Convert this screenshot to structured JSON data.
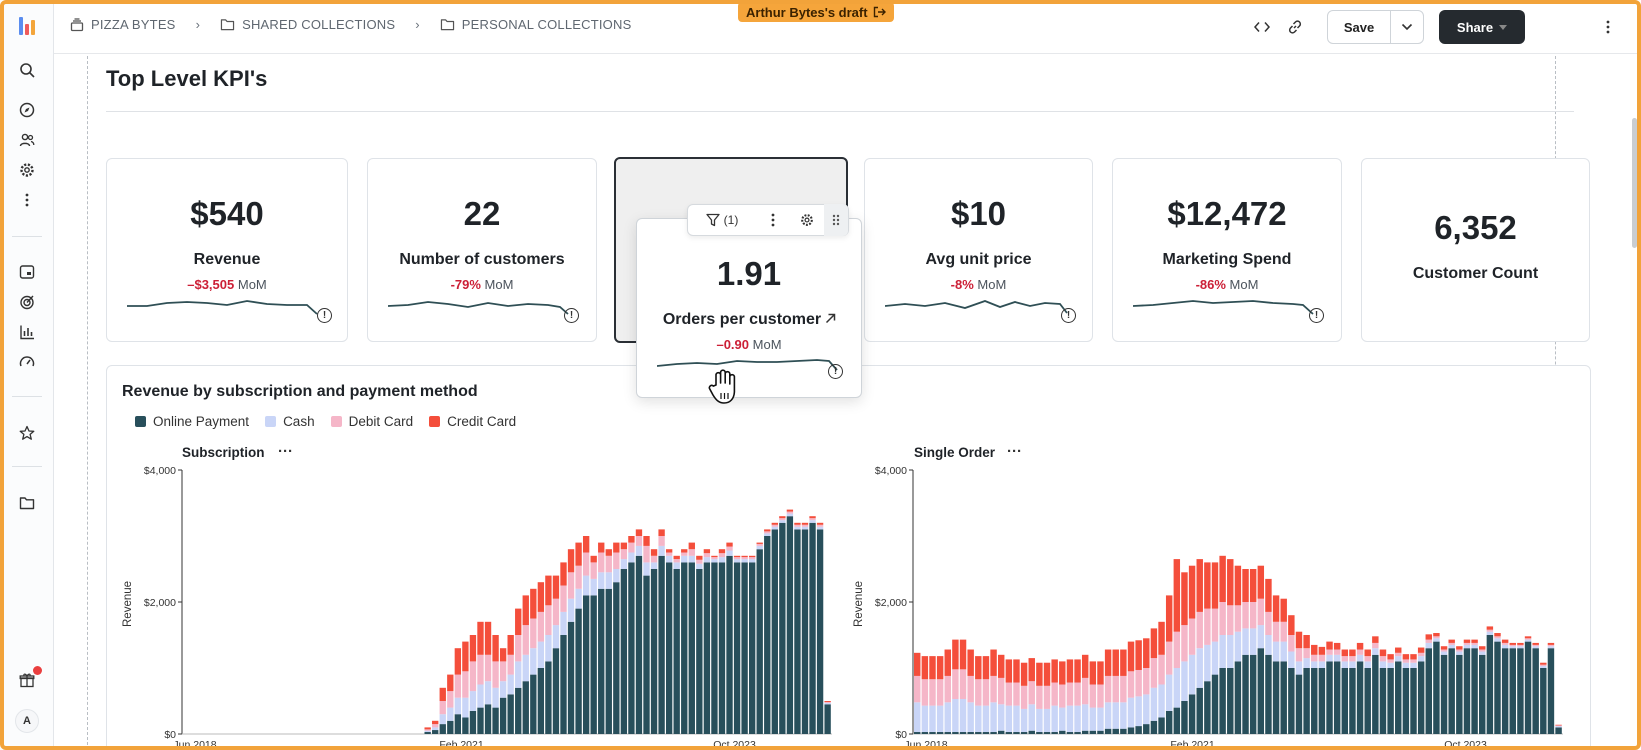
{
  "breadcrumb": {
    "items": [
      "PIZZA BYTES",
      "SHARED COLLECTIONS",
      "PERSONAL COLLECTIONS"
    ]
  },
  "draft_badge": "Arthur Bytes's draft",
  "header": {
    "save_label": "Save",
    "share_label": "Share"
  },
  "rail": {
    "avatar_initial": "A"
  },
  "section_title": "Top Level KPI's",
  "kpis": [
    {
      "value": "$540",
      "label": "Revenue",
      "delta": "–$3,505",
      "unit": "MoM"
    },
    {
      "value": "22",
      "label": "Number of customers",
      "delta": "-79%",
      "unit": "MoM"
    },
    {
      "value": "1.91",
      "label": "Orders per customer",
      "delta": "–0.90",
      "unit": "MoM"
    },
    {
      "value": "$10",
      "label": "Avg unit price",
      "delta": "-8%",
      "unit": "MoM"
    },
    {
      "value": "$12,472",
      "label": "Marketing Spend",
      "delta": "-86%",
      "unit": "MoM"
    },
    {
      "value": "6,352",
      "label": "Customer Count"
    }
  ],
  "card_toolbar": {
    "filter_count": "(1)"
  },
  "colors": {
    "online_payment": "#284f5b",
    "cash": "#c9d5f7",
    "debit_card": "#f5b6c8",
    "credit_card": "#f44e3b",
    "accent_draft": "#f5a53b",
    "negative": "#cc1f36"
  },
  "chart_data": [
    {
      "type": "bar",
      "stacked": true,
      "title": "Revenue by subscription and payment method",
      "subtitle": "Subscription",
      "ylabel": "Revenue",
      "ylim": [
        0,
        4000
      ],
      "yticks": [
        "$0",
        "$2,000",
        "$4,000"
      ],
      "xticks": [
        "Jun 2018",
        "Feb 2021",
        "Oct 2023"
      ],
      "legend": [
        "Online Payment",
        "Cash",
        "Debit Card",
        "Credit Card"
      ],
      "totals": [
        0,
        0,
        0,
        0,
        0,
        0,
        0,
        0,
        0,
        0,
        0,
        0,
        0,
        0,
        0,
        0,
        0,
        0,
        0,
        0,
        0,
        0,
        0,
        0,
        0,
        0,
        0,
        0,
        0,
        0,
        0,
        0,
        100,
        200,
        700,
        900,
        1300,
        1400,
        1500,
        1700,
        1700,
        1500,
        1300,
        1500,
        1900,
        2100,
        2200,
        2300,
        2400,
        2400,
        2600,
        2800,
        2900,
        3000,
        2700,
        2900,
        2800,
        2900,
        2900,
        3000,
        3100,
        3000,
        2800,
        3100,
        2800,
        2700,
        2800,
        2900,
        2700,
        2800,
        2700,
        2800,
        2900,
        2700,
        2700,
        2700,
        2900,
        3100,
        3200,
        3300,
        3400,
        3200,
        3200,
        3300,
        3200,
        500
      ],
      "series": [
        {
          "name": "Online Payment",
          "values": [
            0,
            0,
            0,
            0,
            0,
            0,
            0,
            0,
            0,
            0,
            0,
            0,
            0,
            0,
            0,
            0,
            0,
            0,
            0,
            0,
            0,
            0,
            0,
            0,
            0,
            0,
            0,
            0,
            0,
            0,
            0,
            0,
            30,
            60,
            150,
            200,
            300,
            250,
            350,
            400,
            450,
            400,
            550,
            600,
            700,
            800,
            900,
            1000,
            1100,
            1300,
            1500,
            1700,
            1900,
            2100,
            2100,
            2200,
            2200,
            2300,
            2500,
            2600,
            2700,
            2400,
            2500,
            2700,
            2600,
            2500,
            2600,
            2600,
            2500,
            2600,
            2600,
            2600,
            2700,
            2600,
            2600,
            2600,
            2800,
            3000,
            3100,
            3200,
            3300,
            3100,
            3100,
            3200,
            3100,
            450
          ]
        },
        {
          "name": "Cash",
          "values": [
            0,
            0,
            0,
            0,
            0,
            0,
            0,
            0,
            0,
            0,
            0,
            0,
            0,
            0,
            0,
            0,
            0,
            0,
            0,
            0,
            0,
            0,
            0,
            0,
            0,
            0,
            0,
            0,
            0,
            0,
            0,
            0,
            20,
            40,
            150,
            200,
            250,
            300,
            300,
            350,
            350,
            300,
            250,
            300,
            400,
            400,
            400,
            400,
            400,
            350,
            350,
            350,
            300,
            300,
            250,
            250,
            250,
            200,
            150,
            150,
            150,
            200,
            100,
            150,
            100,
            100,
            100,
            100,
            80,
            80,
            50,
            80,
            80,
            50,
            50,
            50,
            50,
            40,
            40,
            40,
            40,
            40,
            40,
            40,
            40,
            20
          ]
        },
        {
          "name": "Debit Card",
          "values": [
            0,
            0,
            0,
            0,
            0,
            0,
            0,
            0,
            0,
            0,
            0,
            0,
            0,
            0,
            0,
            0,
            0,
            0,
            0,
            0,
            0,
            0,
            0,
            0,
            0,
            0,
            0,
            0,
            0,
            0,
            0,
            0,
            20,
            50,
            200,
            250,
            350,
            400,
            450,
            450,
            400,
            400,
            300,
            300,
            400,
            450,
            450,
            450,
            450,
            400,
            400,
            400,
            350,
            350,
            250,
            300,
            250,
            250,
            150,
            150,
            150,
            250,
            100,
            150,
            50,
            50,
            50,
            100,
            60,
            60,
            30,
            60,
            60,
            30,
            30,
            30,
            30,
            30,
            30,
            30,
            30,
            30,
            30,
            30,
            30,
            15
          ]
        },
        {
          "name": "Credit Card",
          "values": [
            0,
            0,
            0,
            0,
            0,
            0,
            0,
            0,
            0,
            0,
            0,
            0,
            0,
            0,
            0,
            0,
            0,
            0,
            0,
            0,
            0,
            0,
            0,
            0,
            0,
            0,
            0,
            0,
            0,
            0,
            0,
            0,
            30,
            50,
            200,
            250,
            400,
            450,
            400,
            500,
            500,
            400,
            200,
            300,
            400,
            450,
            450,
            450,
            450,
            350,
            350,
            350,
            350,
            250,
            100,
            150,
            100,
            150,
            100,
            100,
            100,
            150,
            100,
            100,
            50,
            50,
            50,
            100,
            60,
            60,
            20,
            60,
            60,
            20,
            20,
            20,
            20,
            30,
            30,
            30,
            30,
            30,
            30,
            30,
            30,
            15
          ]
        }
      ]
    },
    {
      "type": "bar",
      "stacked": true,
      "subtitle": "Single Order",
      "ylabel": "Revenue",
      "ylim": [
        0,
        4000
      ],
      "yticks": [
        "$0",
        "$2,000",
        "$4,000"
      ],
      "xticks": [
        "Jun 2018",
        "Feb 2021",
        "Oct 2023"
      ],
      "legend": [
        "Online Payment",
        "Cash",
        "Debit Card",
        "Credit Card"
      ],
      "series": [
        {
          "name": "Online Payment",
          "values": [
            30,
            30,
            30,
            30,
            30,
            30,
            30,
            30,
            30,
            30,
            30,
            50,
            30,
            30,
            30,
            50,
            30,
            30,
            30,
            50,
            30,
            30,
            50,
            50,
            50,
            80,
            80,
            80,
            100,
            120,
            150,
            200,
            250,
            350,
            400,
            500,
            600,
            700,
            800,
            900,
            1000,
            1000,
            1100,
            1200,
            1200,
            1300,
            1200,
            1100,
            1100,
            1000,
            900,
            1000,
            1000,
            1000,
            1100,
            1100,
            1000,
            1000,
            1100,
            1000,
            1200,
            1000,
            1000,
            1100,
            1000,
            1000,
            1100,
            1300,
            1400,
            1200,
            1300,
            1200,
            1300,
            1300,
            1200,
            1500,
            1400,
            1300,
            1300,
            1300,
            1400,
            1300,
            1000,
            1300,
            100
          ]
        },
        {
          "name": "Cash",
          "values": [
            450,
            400,
            400,
            400,
            450,
            500,
            500,
            450,
            400,
            400,
            450,
            400,
            400,
            400,
            350,
            400,
            350,
            350,
            400,
            350,
            400,
            400,
            400,
            350,
            350,
            400,
            400,
            400,
            450,
            450,
            450,
            500,
            500,
            550,
            600,
            600,
            600,
            600,
            550,
            500,
            500,
            500,
            450,
            400,
            400,
            350,
            300,
            300,
            300,
            250,
            200,
            150,
            100,
            100,
            100,
            100,
            100,
            100,
            100,
            100,
            100,
            100,
            80,
            80,
            80,
            80,
            80,
            80,
            50,
            50,
            50,
            50,
            50,
            50,
            50,
            50,
            50,
            50,
            30,
            30,
            30,
            30,
            30,
            30,
            20
          ]
        },
        {
          "name": "Debit Card",
          "values": [
            400,
            400,
            400,
            400,
            400,
            450,
            450,
            400,
            400,
            400,
            400,
            400,
            350,
            350,
            350,
            350,
            350,
            350,
            350,
            350,
            350,
            350,
            400,
            350,
            350,
            400,
            400,
            400,
            400,
            400,
            400,
            450,
            450,
            500,
            550,
            550,
            550,
            550,
            550,
            500,
            500,
            450,
            400,
            400,
            400,
            400,
            350,
            300,
            300,
            250,
            200,
            150,
            100,
            100,
            80,
            80,
            80,
            80,
            80,
            80,
            80,
            80,
            50,
            50,
            50,
            50,
            50,
            50,
            30,
            30,
            30,
            30,
            30,
            30,
            30,
            30,
            30,
            30,
            20,
            20,
            20,
            20,
            20,
            20,
            10
          ]
        },
        {
          "name": "Credit Card",
          "values": [
            350,
            350,
            350,
            350,
            400,
            450,
            450,
            400,
            350,
            350,
            400,
            350,
            350,
            350,
            350,
            350,
            350,
            350,
            350,
            350,
            350,
            350,
            350,
            350,
            350,
            400,
            400,
            400,
            450,
            450,
            450,
            450,
            500,
            700,
            1100,
            800,
            800,
            800,
            700,
            700,
            700,
            700,
            600,
            500,
            500,
            500,
            500,
            400,
            350,
            300,
            250,
            200,
            150,
            120,
            120,
            100,
            100,
            100,
            100,
            100,
            100,
            100,
            80,
            80,
            80,
            80,
            80,
            80,
            50,
            50,
            50,
            50,
            50,
            50,
            50,
            50,
            50,
            50,
            30,
            30,
            30,
            30,
            30,
            30,
            10
          ]
        }
      ]
    }
  ]
}
